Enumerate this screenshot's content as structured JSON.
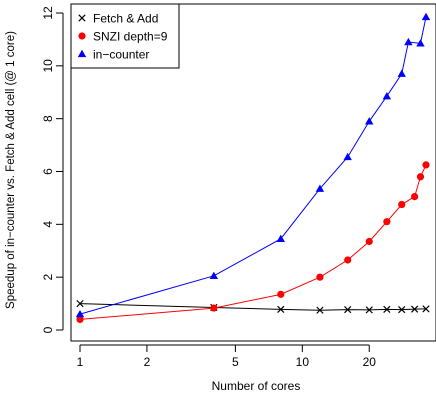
{
  "chart_data": {
    "type": "line",
    "title": "",
    "xlabel": "Number of cores",
    "ylabel": "Speedup of in−counter vs. Fetch & Add cell (@ 1 core)",
    "x_scale": "log",
    "xlim": [
      1,
      36
    ],
    "ylim": [
      0,
      12
    ],
    "x_ticks": [
      1,
      2,
      5,
      10,
      20
    ],
    "y_ticks": [
      0,
      2,
      4,
      6,
      8,
      10,
      12
    ],
    "grid": false,
    "legend_position": "top-left",
    "series": [
      {
        "name": "Fetch & Add",
        "marker": "cross",
        "color": "#000000",
        "x": [
          1,
          4,
          8,
          12,
          16,
          20,
          24,
          28,
          32,
          36
        ],
        "y": [
          1.0,
          0.85,
          0.78,
          0.75,
          0.77,
          0.76,
          0.78,
          0.77,
          0.79,
          0.8
        ]
      },
      {
        "name": "SNZI depth=9",
        "marker": "circle",
        "color": "#ff0000",
        "x": [
          1,
          4,
          8,
          12,
          16,
          20,
          24,
          28,
          32,
          34,
          36
        ],
        "y": [
          0.4,
          0.83,
          1.35,
          2.0,
          2.65,
          3.35,
          4.1,
          4.75,
          5.05,
          5.8,
          6.25
        ]
      },
      {
        "name": "in−counter",
        "marker": "triangle",
        "color": "#0000ff",
        "x": [
          1,
          4,
          8,
          12,
          16,
          20,
          24,
          28,
          30,
          34,
          36
        ],
        "y": [
          0.6,
          2.05,
          3.45,
          5.35,
          6.55,
          7.9,
          8.85,
          9.7,
          10.9,
          10.85,
          11.85
        ]
      }
    ]
  }
}
